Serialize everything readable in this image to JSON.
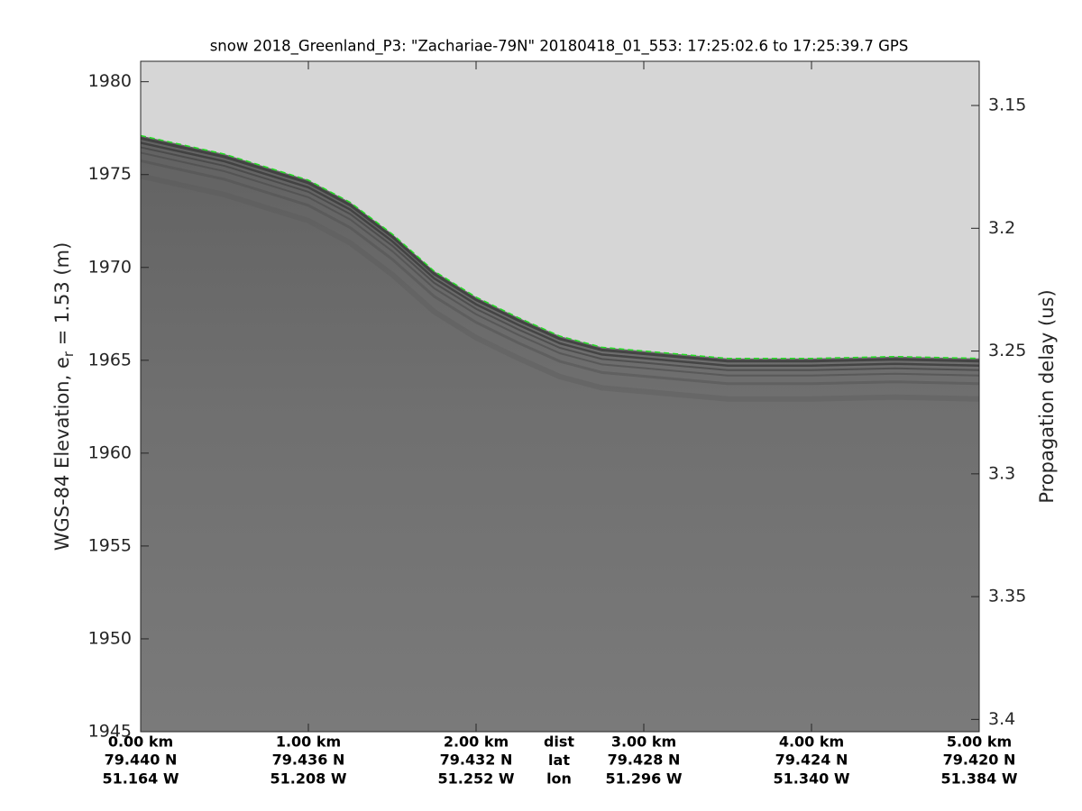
{
  "chart_data": {
    "type": "line",
    "title": "snow 2018_Greenland_P3: \"Zachariae-79N\"  20180418_01_553: 17:25:02.6 to 17:25:39.7 GPS",
    "ylabel": {
      "main": "WGS-84 Elevation, e",
      "sub": "r",
      "rest": " = 1.53 (m)"
    },
    "y2label": "Propagation delay (us)",
    "xlim": [
      0,
      5
    ],
    "xticks": [
      {
        "value": 0,
        "label": "0.00 km"
      },
      {
        "value": 1,
        "label": "1.00 km"
      },
      {
        "value": 2,
        "label": "2.00 km"
      },
      {
        "value": 3,
        "label": "3.00 km"
      },
      {
        "value": 4,
        "label": "4.00 km"
      },
      {
        "value": 5,
        "label": "5.00 km"
      }
    ],
    "lat_labels": [
      "79.440 N",
      "79.436 N",
      "79.432 N",
      "79.428 N",
      "79.424 N",
      "79.420 N"
    ],
    "lon_labels": [
      "51.164 W",
      "51.208 W",
      "51.252 W",
      "51.296 W",
      "51.340 W",
      "51.384 W"
    ],
    "row_labels": [
      "dist",
      "lat",
      "lon"
    ],
    "ylim": [
      1945,
      1981.1
    ],
    "yticks": [
      1945,
      1950,
      1955,
      1960,
      1965,
      1970,
      1975,
      1980
    ],
    "y2lim": [
      3.405,
      3.132
    ],
    "y2ticks": [
      3.15,
      3.2,
      3.25,
      3.3,
      3.35,
      3.4
    ],
    "x": [
      0,
      0.25,
      0.5,
      0.75,
      1.0,
      1.25,
      1.5,
      1.75,
      2.0,
      2.25,
      2.5,
      2.75,
      3.0,
      3.5,
      4.0,
      4.5,
      5.0
    ],
    "series": [
      {
        "color": "#22dd22",
        "values": [
          1977.1,
          1976.6,
          1976.1,
          1975.4,
          1974.7,
          1973.5,
          1971.8,
          1969.8,
          1968.4,
          1967.3,
          1966.3,
          1965.7,
          1965.5,
          1965.1,
          1965.1,
          1965.2,
          1965.1
        ]
      }
    ]
  }
}
